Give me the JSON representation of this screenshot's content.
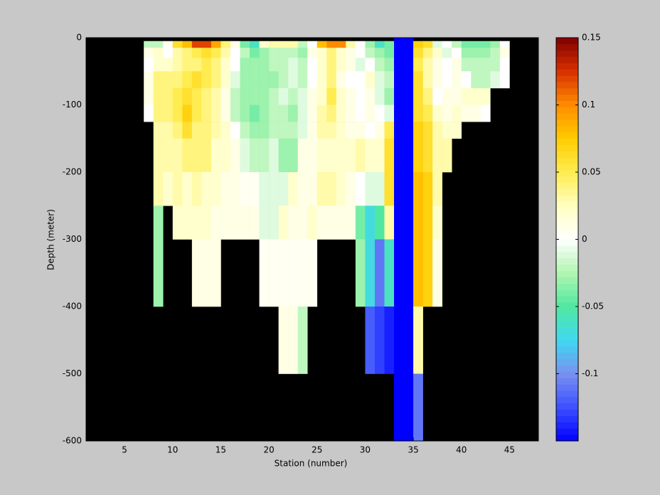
{
  "chart_data": {
    "type": "heatmap",
    "xlabel": "Station (number)",
    "ylabel": "Depth (meter)",
    "xlim": [
      1,
      48
    ],
    "ylim": [
      -600,
      0
    ],
    "xticks": [
      5,
      10,
      15,
      20,
      25,
      30,
      35,
      40,
      45
    ],
    "yticks": [
      0,
      -100,
      -200,
      -300,
      -400,
      -500,
      -600
    ],
    "x_edges": [
      1,
      2,
      3,
      4,
      5,
      6,
      7,
      8,
      9,
      10,
      11,
      12,
      13,
      14,
      15,
      16,
      17,
      18,
      19,
      20,
      21,
      22,
      23,
      24,
      25,
      26,
      27,
      28,
      29,
      30,
      31,
      32,
      33,
      34,
      35,
      36,
      37,
      38,
      39,
      40,
      41,
      42,
      43,
      44,
      45,
      46,
      47,
      48
    ],
    "y_edges": [
      0,
      -5,
      -15,
      -30,
      -50,
      -75,
      -100,
      -125,
      -150,
      -200,
      -250,
      -300,
      -400,
      -500,
      -600
    ],
    "clim": [
      -0.15,
      0.15
    ],
    "cticks": [
      -0.1,
      -0.05,
      0,
      0.05,
      0.1,
      0.15
    ],
    "missing_color": "#000000",
    "colormap": [
      "#0000ff",
      "#3c50ff",
      "#7890f0",
      "#40d8f0",
      "#50e8a0",
      "#b0f5b0",
      "#ffffff",
      "#ffffc0",
      "#ffec50",
      "#ffcc00",
      "#ff8c00",
      "#d83000",
      "#800000"
    ],
    "values": [
      [
        null,
        null,
        null,
        null,
        null,
        null,
        null,
        null,
        null,
        null,
        null,
        null,
        null,
        null,
        null,
        null,
        null,
        null,
        null,
        null,
        null,
        null,
        null,
        null,
        null,
        null,
        null,
        null,
        null,
        null,
        null,
        null,
        -0.16,
        -0.16,
        null,
        null,
        null,
        null,
        null,
        null,
        null,
        null,
        null,
        null,
        null,
        null,
        null
      ],
      [
        null,
        null,
        null,
        null,
        null,
        null,
        -0.02,
        -0.02,
        0.005,
        0.06,
        0.08,
        0.12,
        0.12,
        0.09,
        0.04,
        0.01,
        -0.04,
        -0.06,
        0.02,
        0.03,
        0.03,
        0.03,
        -0.02,
        0.0,
        0.08,
        0.1,
        0.1,
        0.03,
        0.0,
        -0.03,
        -0.06,
        -0.04,
        -0.16,
        -0.16,
        0.07,
        0.06,
        -0.01,
        0.0,
        -0.02,
        -0.04,
        -0.04,
        -0.04,
        -0.03,
        0.0,
        null,
        null,
        null
      ],
      [
        null,
        null,
        null,
        null,
        null,
        null,
        0.01,
        0.02,
        0.0,
        0.03,
        0.04,
        0.05,
        0.06,
        0.05,
        0.03,
        0.0,
        -0.02,
        -0.04,
        -0.03,
        -0.02,
        -0.02,
        -0.02,
        -0.03,
        0.01,
        0.02,
        0.04,
        0.02,
        0.01,
        0.0,
        -0.02,
        -0.03,
        -0.04,
        -0.16,
        -0.16,
        0.06,
        0.04,
        0.02,
        -0.01,
        0.0,
        -0.03,
        -0.03,
        -0.03,
        -0.02,
        0.01,
        null,
        null,
        null
      ],
      [
        null,
        null,
        null,
        null,
        null,
        null,
        0.0,
        0.02,
        0.02,
        0.03,
        0.04,
        0.04,
        0.05,
        0.04,
        0.02,
        0.0,
        -0.03,
        -0.03,
        -0.03,
        -0.02,
        -0.02,
        -0.01,
        -0.02,
        0.0,
        0.02,
        0.04,
        0.02,
        0.01,
        -0.01,
        0.0,
        -0.02,
        -0.03,
        -0.16,
        -0.16,
        0.05,
        0.03,
        0.01,
        0.0,
        0.01,
        -0.02,
        -0.02,
        -0.02,
        -0.02,
        0.0,
        null,
        null,
        null
      ],
      [
        null,
        null,
        null,
        null,
        null,
        null,
        0.01,
        0.04,
        0.04,
        0.04,
        0.05,
        0.06,
        0.05,
        0.04,
        0.02,
        -0.01,
        -0.03,
        -0.03,
        -0.03,
        -0.03,
        -0.02,
        -0.01,
        -0.02,
        0.0,
        0.02,
        0.04,
        0.01,
        0.0,
        0.0,
        0.02,
        -0.01,
        -0.02,
        -0.16,
        -0.16,
        0.06,
        0.03,
        0.01,
        0.0,
        0.01,
        0.0,
        -0.02,
        -0.02,
        -0.01,
        0.0,
        null,
        null,
        null
      ],
      [
        null,
        null,
        null,
        null,
        null,
        null,
        0.01,
        0.04,
        0.04,
        0.05,
        0.06,
        0.05,
        0.04,
        0.03,
        0.01,
        -0.02,
        -0.03,
        -0.03,
        -0.03,
        -0.02,
        -0.01,
        -0.02,
        -0.01,
        0.01,
        0.02,
        0.05,
        0.02,
        0.01,
        0.0,
        0.01,
        -0.01,
        -0.03,
        -0.16,
        -0.16,
        0.06,
        0.04,
        0.0,
        0.01,
        0.01,
        0.02,
        0.02,
        0.02,
        null,
        null,
        null,
        null,
        null
      ],
      [
        null,
        null,
        null,
        null,
        null,
        null,
        0.0,
        0.04,
        0.04,
        0.05,
        0.07,
        0.05,
        0.04,
        0.03,
        0.01,
        -0.02,
        -0.03,
        -0.04,
        -0.03,
        -0.02,
        -0.02,
        -0.03,
        -0.01,
        0.01,
        0.03,
        0.04,
        0.02,
        0.01,
        0.0,
        0.01,
        0.0,
        -0.01,
        -0.16,
        -0.16,
        0.06,
        0.05,
        0.02,
        0.01,
        0.02,
        0.01,
        0.01,
        0.0,
        null,
        null,
        null,
        null,
        null
      ],
      [
        null,
        null,
        null,
        null,
        null,
        null,
        null,
        0.03,
        0.03,
        0.04,
        0.06,
        0.04,
        0.04,
        0.03,
        0.02,
        0.0,
        -0.02,
        -0.03,
        -0.03,
        -0.02,
        -0.02,
        -0.02,
        -0.01,
        0.01,
        0.03,
        0.03,
        0.02,
        0.01,
        0.01,
        0.0,
        0.01,
        0.05,
        -0.16,
        -0.16,
        0.07,
        0.06,
        0.03,
        0.02,
        0.02,
        null,
        null,
        null,
        null,
        null,
        null,
        null,
        null
      ],
      [
        null,
        null,
        null,
        null,
        null,
        null,
        null,
        0.03,
        0.03,
        0.03,
        0.04,
        0.04,
        0.04,
        0.02,
        0.02,
        0.01,
        -0.01,
        -0.02,
        -0.02,
        -0.01,
        -0.03,
        -0.03,
        0.01,
        0.01,
        0.02,
        0.02,
        0.02,
        0.02,
        0.03,
        0.02,
        0.02,
        0.06,
        -0.16,
        -0.16,
        0.07,
        0.06,
        0.03,
        0.03,
        null,
        null,
        null,
        null,
        null,
        null,
        null,
        null,
        null
      ],
      [
        null,
        null,
        null,
        null,
        null,
        null,
        null,
        0.03,
        0.02,
        0.03,
        0.02,
        0.03,
        0.02,
        0.02,
        0.01,
        0.01,
        0.005,
        0.005,
        -0.01,
        -0.01,
        -0.01,
        0.02,
        0.01,
        0.01,
        0.03,
        0.03,
        0.02,
        0.01,
        0.0,
        -0.01,
        -0.01,
        0.06,
        -0.16,
        -0.16,
        0.08,
        0.07,
        0.03,
        null,
        null,
        null,
        null,
        null,
        null,
        null,
        null,
        null,
        null
      ],
      [
        null,
        null,
        null,
        null,
        null,
        null,
        null,
        -0.03,
        null,
        0.02,
        0.02,
        0.02,
        0.02,
        0.01,
        0.01,
        0.01,
        0.01,
        0.01,
        -0.01,
        -0.01,
        0.02,
        0.01,
        0.01,
        0.02,
        0.01,
        0.01,
        0.01,
        0.01,
        -0.04,
        -0.07,
        -0.05,
        0.03,
        -0.16,
        -0.16,
        0.08,
        0.07,
        0.02,
        null,
        null,
        null,
        null,
        null,
        null,
        null,
        null,
        null,
        null
      ],
      [
        null,
        null,
        null,
        null,
        null,
        null,
        null,
        -0.03,
        null,
        null,
        null,
        0.01,
        0.01,
        0.01,
        null,
        null,
        null,
        null,
        0.005,
        0.005,
        0.005,
        0.005,
        0.005,
        0.005,
        null,
        null,
        null,
        null,
        -0.03,
        -0.07,
        -0.11,
        -0.06,
        -0.16,
        -0.16,
        0.08,
        0.07,
        0.01,
        null,
        null,
        null,
        null,
        null,
        null,
        null,
        null,
        null,
        null
      ],
      [
        null,
        null,
        null,
        null,
        null,
        null,
        null,
        null,
        null,
        null,
        null,
        null,
        null,
        null,
        null,
        null,
        null,
        null,
        null,
        null,
        0.01,
        0.01,
        -0.02,
        null,
        null,
        null,
        null,
        null,
        null,
        -0.12,
        -0.13,
        -0.14,
        -0.16,
        -0.16,
        0.03,
        null,
        null,
        null,
        null,
        null,
        null,
        null,
        null,
        null,
        null,
        null,
        null
      ],
      [
        null,
        null,
        null,
        null,
        null,
        null,
        null,
        null,
        null,
        null,
        null,
        null,
        null,
        null,
        null,
        null,
        null,
        null,
        null,
        null,
        null,
        null,
        null,
        null,
        null,
        null,
        null,
        null,
        null,
        null,
        null,
        null,
        -0.16,
        -0.16,
        -0.11,
        null,
        null,
        null,
        null,
        null,
        null,
        null,
        null,
        null,
        null,
        null,
        null
      ]
    ]
  }
}
